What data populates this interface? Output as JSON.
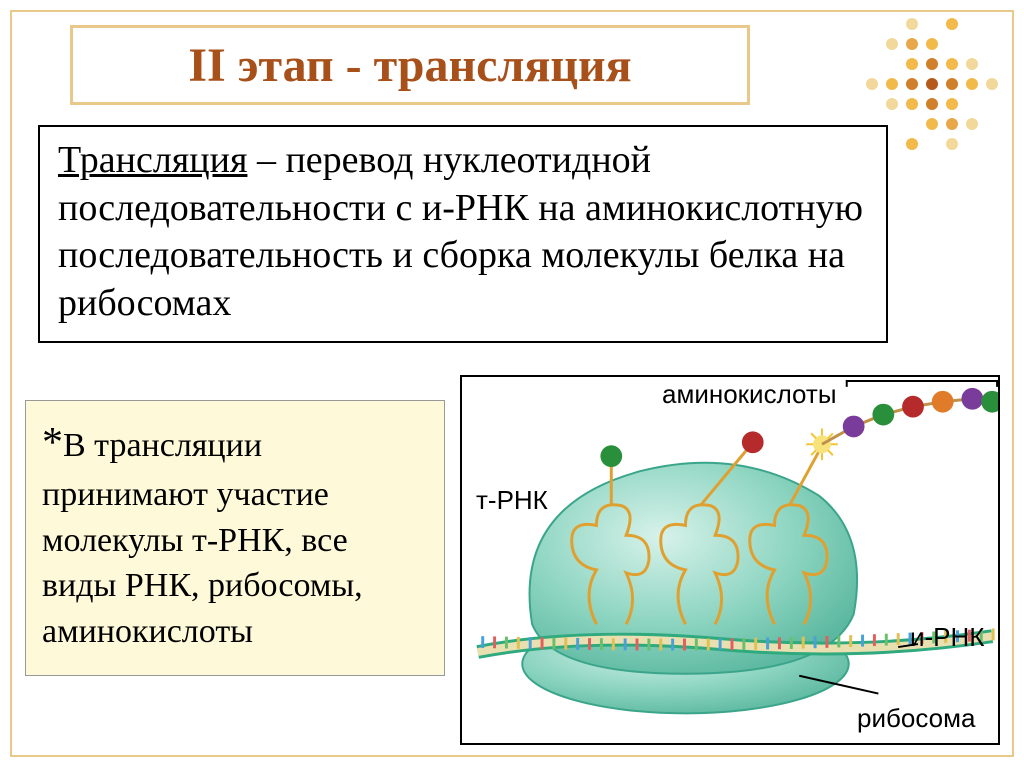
{
  "title": "II этап -  трансляция",
  "definition_box": {
    "underlined": "Трансляция",
    "rest": " – перевод  нуклеотидной последовательности с и-РНК на аминокислотную последовательность и сборка молекулы  белка  на рибосомах"
  },
  "note_box": {
    "star": "*",
    "text": "В трансляции принимают участие молекулы т-РНК, все виды РНК, рибосомы, аминокислоты"
  },
  "diagram_labels": {
    "amino_acids": "аминокислоты",
    "trna": "т-РНК",
    "mrna": "и-РНК",
    "ribosome": "рибосома"
  },
  "colors": {
    "title_text": "#a8501a",
    "title_border": "#e8c98a",
    "slide_border": "#e8c98a",
    "note_bg": "#fef9d8",
    "ribosome_fill": "#8bd4c0",
    "ribosome_stroke": "#3aa58a",
    "mrna": "#2fa97e",
    "trna": "#e0a030",
    "aa_green": "#2a8f3a",
    "aa_red": "#b52a2a",
    "aa_purple": "#7a3c9a",
    "aa_orange": "#e07b2a",
    "aa_sun": "#f4c430",
    "bg": "#ffffff"
  },
  "dots": {
    "grid": 7,
    "pattern": [
      [
        "",
        "",
        "#f2d89a",
        "",
        "#f2ba4a",
        "",
        ""
      ],
      [
        "",
        "#f2d89a",
        "#e8a84a",
        "#f2ba4a",
        "",
        "",
        ""
      ],
      [
        "",
        "",
        "#f2ba4a",
        "#d0802a",
        "#f2ba4a",
        "#f2d89a",
        ""
      ],
      [
        "#f2d89a",
        "#f2ba4a",
        "#d0802a",
        "#b55a1a",
        "#d0802a",
        "#f2ba4a",
        "#f2d89a"
      ],
      [
        "",
        "#f2d89a",
        "#f2ba4a",
        "#d0802a",
        "#f2ba4a",
        "",
        ""
      ],
      [
        "",
        "",
        "",
        "#f2ba4a",
        "#e8a84a",
        "#f2d89a",
        ""
      ],
      [
        "",
        "",
        "#f2ba4a",
        "",
        "#f2d89a",
        "",
        ""
      ]
    ]
  }
}
